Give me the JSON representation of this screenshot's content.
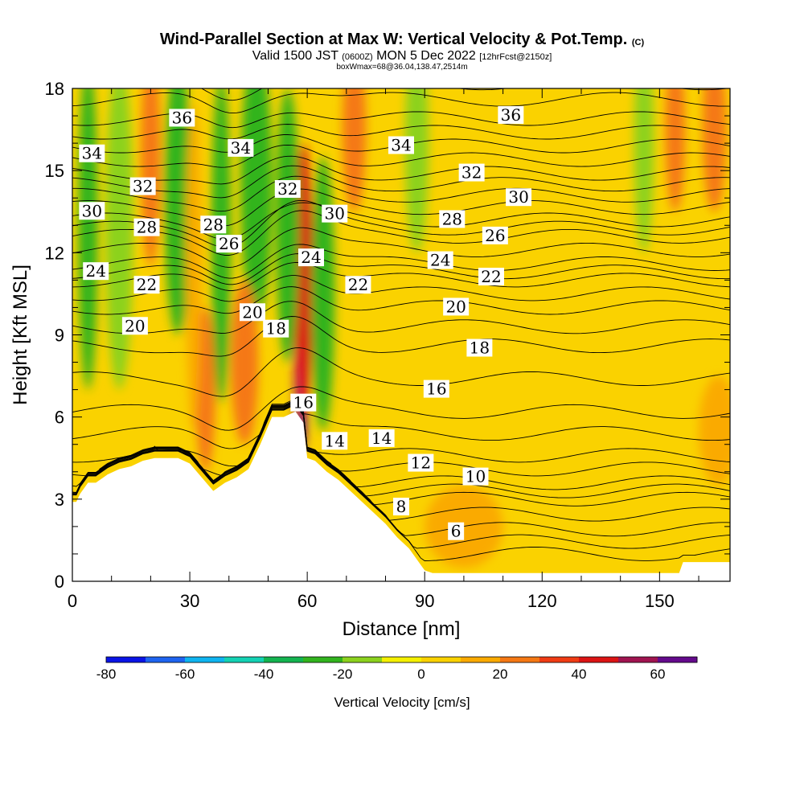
{
  "title": {
    "main": "Wind-Parallel Section at Max W: Vertical Velocity & Pot.Temp.",
    "tag": "(C)",
    "valid_prefix": "Valid 1500 JST",
    "valid_zulu": "(0600Z)",
    "valid_date": "MON 5 Dec 2022",
    "forecast": "[12hrFcst@2150z]",
    "box": "boxWmax=68@36.04,138.47,2514m"
  },
  "chart_data": {
    "type": "heatmap",
    "xlabel": "Distance [nm]",
    "ylabel": "Height [Kft MSL]",
    "xlim": [
      0,
      168
    ],
    "ylim": [
      0,
      18
    ],
    "x_ticks": [
      0,
      30,
      60,
      90,
      120,
      150
    ],
    "y_ticks": [
      0,
      3,
      6,
      9,
      12,
      15,
      18
    ],
    "colorbar": {
      "label": "Vertical Velocity [cm/s]",
      "range": [
        -80,
        70
      ],
      "step": 10,
      "tick_labels": [
        -80,
        -60,
        -40,
        -20,
        0,
        20,
        40,
        60
      ],
      "colors": [
        "#0a14e6",
        "#1e64f0",
        "#0fb4f0",
        "#14d2b4",
        "#14b450",
        "#32b41e",
        "#8cd21e",
        "#f5f000",
        "#fad200",
        "#faaa00",
        "#f57814",
        "#f03c14",
        "#dc1414",
        "#a01450",
        "#640a8c"
      ]
    },
    "terrain_profile_kft": {
      "x": [
        0,
        1,
        2,
        3,
        4,
        6,
        9,
        12,
        15,
        18,
        21,
        24,
        27,
        30,
        33,
        36,
        39,
        42,
        45,
        48,
        51,
        54,
        57,
        59,
        60,
        62,
        65,
        68,
        71,
        74,
        77,
        80,
        83,
        86,
        89,
        90,
        92,
        95,
        100,
        110,
        120,
        130,
        140,
        150,
        155,
        156,
        160,
        168
      ],
      "y": [
        2.9,
        2.9,
        3.2,
        3.4,
        3.6,
        3.6,
        3.9,
        4.1,
        4.2,
        4.4,
        4.5,
        4.5,
        4.5,
        4.3,
        3.8,
        3.3,
        3.6,
        3.8,
        4.1,
        5.0,
        6.0,
        6.0,
        6.2,
        5.8,
        4.5,
        4.4,
        4.0,
        3.7,
        3.3,
        2.9,
        2.5,
        2.1,
        1.6,
        1.2,
        0.6,
        0.4,
        0.3,
        0.3,
        0.3,
        0.3,
        0.3,
        0.3,
        0.3,
        0.3,
        0.3,
        0.7,
        0.7,
        0.7
      ]
    },
    "velocity_features": [
      {
        "x": 58.5,
        "y": 8.2,
        "value": 68,
        "width_nm": 1.8,
        "height_kft": 3.5
      },
      {
        "x": 59.0,
        "y": 11.0,
        "value": 40,
        "width_nm": 2.5,
        "height_kft": 5.0
      },
      {
        "x": 55.0,
        "y": 13.0,
        "value": -30,
        "width_nm": 3.0,
        "height_kft": 5.0
      },
      {
        "x": 64.0,
        "y": 10.5,
        "value": -25,
        "width_nm": 3.0,
        "height_kft": 5.0
      },
      {
        "x": 47.0,
        "y": 14.5,
        "value": -30,
        "width_nm": 4.0,
        "height_kft": 5.0
      },
      {
        "x": 38.0,
        "y": 12.5,
        "value": -25,
        "width_nm": 2.5,
        "height_kft": 6.0
      },
      {
        "x": 4.0,
        "y": 13.0,
        "value": -30,
        "width_nm": 2.5,
        "height_kft": 6.0
      },
      {
        "x": 12.0,
        "y": 13.0,
        "value": -20,
        "width_nm": 3.5,
        "height_kft": 6.0
      },
      {
        "x": 20.0,
        "y": 15.5,
        "value": 25,
        "width_nm": 2.5,
        "height_kft": 4.0
      },
      {
        "x": 27.0,
        "y": 14.0,
        "value": -25,
        "width_nm": 3.5,
        "height_kft": 5.0
      },
      {
        "x": 34.0,
        "y": 7.0,
        "value": 20,
        "width_nm": 2.5,
        "height_kft": 3.0
      },
      {
        "x": 44.0,
        "y": 8.0,
        "value": 20,
        "width_nm": 3.5,
        "height_kft": 3.0
      },
      {
        "x": 31.0,
        "y": 11.5,
        "value": 15,
        "width_nm": 2.0,
        "height_kft": 6.0
      },
      {
        "x": 72.0,
        "y": 16.5,
        "value": 20,
        "width_nm": 3.0,
        "height_kft": 3.0
      },
      {
        "x": 88.0,
        "y": 16.0,
        "value": -15,
        "width_nm": 3.0,
        "height_kft": 4.0
      },
      {
        "x": 146.0,
        "y": 16.0,
        "value": -20,
        "width_nm": 2.5,
        "height_kft": 4.0
      },
      {
        "x": 154.0,
        "y": 16.5,
        "value": 25,
        "width_nm": 2.5,
        "height_kft": 3.0
      },
      {
        "x": 164.0,
        "y": 16.5,
        "value": 20,
        "width_nm": 3.0,
        "height_kft": 3.0
      },
      {
        "x": 100.0,
        "y": 2.0,
        "value": 15,
        "width_nm": 10.0,
        "height_kft": 1.5
      },
      {
        "x": 165.0,
        "y": 5.5,
        "value": 15,
        "width_nm": 5.0,
        "height_kft": 2.0
      }
    ],
    "theta_contours": {
      "levels": [
        6,
        8,
        10,
        12,
        14,
        16,
        18,
        20,
        22,
        24,
        26,
        28,
        30,
        32,
        34,
        36
      ],
      "base_height_kft": [
        1.0,
        1.9,
        3.0,
        3.6,
        4.6,
        6.2,
        8.6,
        10.0,
        11.0,
        11.6,
        12.6,
        13.2,
        14.1,
        14.9,
        15.9,
        16.9
      ],
      "labels": [
        {
          "level": "6",
          "x": 98,
          "y": 1.8
        },
        {
          "level": "8",
          "x": 84,
          "y": 2.7
        },
        {
          "level": "10",
          "x": 103,
          "y": 3.8
        },
        {
          "level": "12",
          "x": 89,
          "y": 4.3
        },
        {
          "level": "14",
          "x": 79,
          "y": 5.2
        },
        {
          "level": "14",
          "x": 67,
          "y": 5.1
        },
        {
          "level": "16",
          "x": 59,
          "y": 6.5
        },
        {
          "level": "16",
          "x": 93,
          "y": 7.0
        },
        {
          "level": "18",
          "x": 52,
          "y": 9.2
        },
        {
          "level": "18",
          "x": 104,
          "y": 8.5
        },
        {
          "level": "20",
          "x": 16,
          "y": 9.3
        },
        {
          "level": "20",
          "x": 98,
          "y": 10.0
        },
        {
          "level": "20",
          "x": 46,
          "y": 9.8
        },
        {
          "level": "22",
          "x": 19,
          "y": 10.8
        },
        {
          "level": "22",
          "x": 73,
          "y": 10.8
        },
        {
          "level": "22",
          "x": 107,
          "y": 11.1
        },
        {
          "level": "24",
          "x": 6,
          "y": 11.3
        },
        {
          "level": "24",
          "x": 61,
          "y": 11.8
        },
        {
          "level": "24",
          "x": 94,
          "y": 11.7
        },
        {
          "level": "26",
          "x": 40,
          "y": 12.3
        },
        {
          "level": "26",
          "x": 108,
          "y": 12.6
        },
        {
          "level": "28",
          "x": 19,
          "y": 12.9
        },
        {
          "level": "28",
          "x": 36,
          "y": 13.0
        },
        {
          "level": "28",
          "x": 97,
          "y": 13.2
        },
        {
          "level": "30",
          "x": 5,
          "y": 13.5
        },
        {
          "level": "30",
          "x": 67,
          "y": 13.4
        },
        {
          "level": "30",
          "x": 114,
          "y": 14.0
        },
        {
          "level": "32",
          "x": 18,
          "y": 14.4
        },
        {
          "level": "32",
          "x": 55,
          "y": 14.3
        },
        {
          "level": "32",
          "x": 102,
          "y": 14.9
        },
        {
          "level": "34",
          "x": 5,
          "y": 15.6
        },
        {
          "level": "34",
          "x": 43,
          "y": 15.8
        },
        {
          "level": "34",
          "x": 84,
          "y": 15.9
        },
        {
          "level": "36",
          "x": 28,
          "y": 16.9
        },
        {
          "level": "36",
          "x": 112,
          "y": 17.0
        }
      ]
    }
  }
}
